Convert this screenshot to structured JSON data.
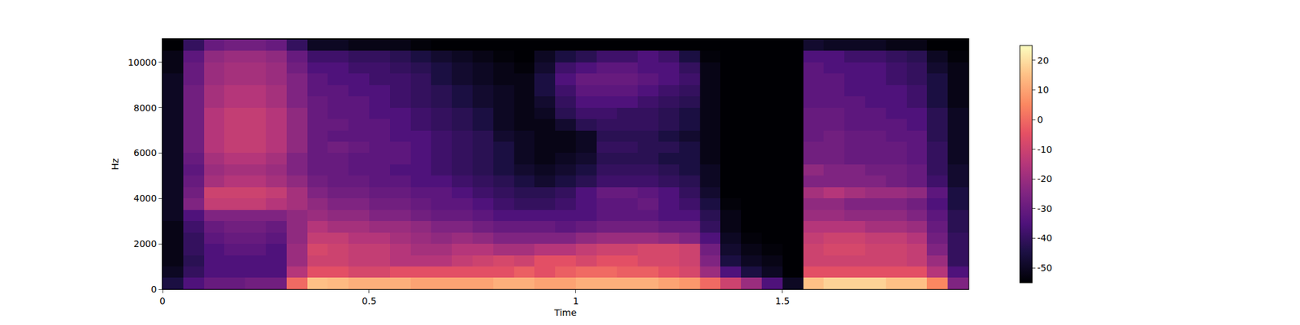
{
  "chart_data": {
    "type": "heatmap",
    "x_label": "Time",
    "y_label": "Hz",
    "color": "magma",
    "x": [
      0.025,
      0.075,
      0.125,
      0.175,
      0.225,
      0.275,
      0.325,
      0.375,
      0.425,
      0.475,
      0.525,
      0.575,
      0.625,
      0.675,
      0.725,
      0.775,
      0.825,
      0.875,
      0.925,
      0.975,
      1.025,
      1.075,
      1.125,
      1.175,
      1.225,
      1.275,
      1.325,
      1.375,
      1.425,
      1.475,
      1.525,
      1.575,
      1.625,
      1.675,
      1.725,
      1.775,
      1.825,
      1.875,
      1.925
    ],
    "y": [
      250,
      750,
      1250,
      1750,
      2250,
      2750,
      3250,
      3750,
      4250,
      4750,
      5250,
      5750,
      6250,
      6750,
      7250,
      7750,
      8250,
      8750,
      9250,
      9750,
      10250,
      10750
    ],
    "xlim": [
      0,
      1.95
    ],
    "ylim": [
      0,
      11025
    ],
    "xticks": [
      0,
      0.5,
      1,
      1.5
    ],
    "yticks": [
      0,
      2000,
      4000,
      6000,
      8000,
      10000
    ],
    "colorbar_range": [
      -55,
      25
    ],
    "colorbar_ticks": [
      -50,
      -40,
      -30,
      -20,
      -10,
      0,
      10,
      20
    ],
    "cells": [
      [
        -45,
        -35,
        -30,
        -30,
        -28,
        -28,
        0,
        15,
        14,
        12,
        12,
        12,
        10,
        10,
        10,
        10,
        12,
        12,
        10,
        10,
        12,
        12,
        12,
        12,
        10,
        8,
        0,
        -10,
        -20,
        -35,
        -50,
        15,
        18,
        18,
        18,
        15,
        15,
        5,
        -25
      ],
      [
        -50,
        -40,
        -35,
        -35,
        -35,
        -35,
        -15,
        -5,
        -5,
        -8,
        -8,
        -5,
        -5,
        -5,
        -5,
        -5,
        -5,
        -2,
        -5,
        -2,
        0,
        0,
        -2,
        -2,
        -5,
        -8,
        -20,
        -35,
        -45,
        -50,
        -55,
        -5,
        -5,
        -5,
        -5,
        -5,
        -5,
        -15,
        -35
      ],
      [
        -52,
        -42,
        -35,
        -35,
        -35,
        -35,
        -20,
        -10,
        -10,
        -12,
        -12,
        -15,
        -15,
        -15,
        -12,
        -10,
        -8,
        -10,
        -5,
        -5,
        -8,
        -5,
        -5,
        -8,
        -8,
        -10,
        -25,
        -45,
        -50,
        -52,
        -55,
        -10,
        -10,
        -10,
        -10,
        -10,
        -12,
        -20,
        -40
      ],
      [
        -52,
        -40,
        -35,
        -32,
        -32,
        -35,
        -20,
        -8,
        -10,
        -12,
        -12,
        -15,
        -18,
        -18,
        -15,
        -15,
        -18,
        -18,
        -15,
        -15,
        -12,
        -10,
        -10,
        -8,
        -8,
        -10,
        -28,
        -48,
        -52,
        -54,
        -55,
        -10,
        -8,
        -8,
        -10,
        -10,
        -12,
        -25,
        -40
      ],
      [
        -52,
        -40,
        -32,
        -30,
        -30,
        -32,
        -22,
        -12,
        -12,
        -15,
        -15,
        -18,
        -20,
        -22,
        -20,
        -22,
        -25,
        -25,
        -25,
        -25,
        -22,
        -20,
        -20,
        -20,
        -22,
        -25,
        -35,
        -50,
        -54,
        -55,
        -55,
        -12,
        -10,
        -10,
        -12,
        -12,
        -15,
        -28,
        -40
      ],
      [
        -52,
        -38,
        -30,
        -28,
        -28,
        -30,
        -22,
        -15,
        -18,
        -18,
        -20,
        -20,
        -22,
        -25,
        -25,
        -28,
        -30,
        -30,
        -30,
        -32,
        -30,
        -28,
        -28,
        -28,
        -30,
        -30,
        -40,
        -52,
        -55,
        -55,
        -55,
        -15,
        -15,
        -15,
        -18,
        -18,
        -20,
        -30,
        -42
      ],
      [
        -50,
        -35,
        -25,
        -25,
        -25,
        -25,
        -22,
        -20,
        -22,
        -22,
        -25,
        -25,
        -28,
        -30,
        -30,
        -32,
        -35,
        -35,
        -35,
        -35,
        -35,
        -32,
        -32,
        -32,
        -35,
        -35,
        -42,
        -52,
        -55,
        -55,
        -55,
        -20,
        -20,
        -22,
        -22,
        -22,
        -25,
        -32,
        -42
      ],
      [
        -50,
        -25,
        -12,
        -12,
        -12,
        -15,
        -18,
        -22,
        -25,
        -25,
        -28,
        -28,
        -30,
        -32,
        -32,
        -35,
        -38,
        -40,
        -40,
        -38,
        -35,
        -32,
        -32,
        -30,
        -35,
        -38,
        -45,
        -54,
        -55,
        -55,
        -55,
        -22,
        -22,
        -25,
        -25,
        -25,
        -28,
        -35,
        -45
      ],
      [
        -50,
        -28,
        -10,
        -10,
        -10,
        -12,
        -18,
        -25,
        -28,
        -28,
        -30,
        -30,
        -32,
        -32,
        -35,
        -38,
        -40,
        -42,
        -42,
        -40,
        -35,
        -30,
        -30,
        -32,
        -35,
        -40,
        -48,
        -55,
        -55,
        -55,
        -55,
        -18,
        -15,
        -18,
        -20,
        -20,
        -22,
        -32,
        -45
      ],
      [
        -50,
        -30,
        -18,
        -15,
        -15,
        -18,
        -22,
        -28,
        -30,
        -30,
        -32,
        -32,
        -35,
        -35,
        -38,
        -40,
        -42,
        -45,
        -48,
        -45,
        -42,
        -38,
        -38,
        -38,
        -40,
        -42,
        -50,
        -55,
        -55,
        -55,
        -55,
        -25,
        -25,
        -25,
        -25,
        -28,
        -30,
        -38,
        -48
      ],
      [
        -50,
        -32,
        -20,
        -18,
        -18,
        -20,
        -25,
        -30,
        -30,
        -32,
        -32,
        -35,
        -35,
        -38,
        -40,
        -42,
        -45,
        -48,
        -50,
        -48,
        -45,
        -40,
        -40,
        -40,
        -42,
        -45,
        -50,
        -55,
        -55,
        -55,
        -55,
        -22,
        -25,
        -25,
        -28,
        -28,
        -30,
        -40,
        -48
      ],
      [
        -50,
        -30,
        -18,
        -15,
        -15,
        -18,
        -25,
        -30,
        -30,
        -32,
        -32,
        -32,
        -35,
        -38,
        -40,
        -42,
        -45,
        -50,
        -52,
        -50,
        -48,
        -42,
        -42,
        -42,
        -45,
        -45,
        -52,
        -55,
        -55,
        -55,
        -55,
        -28,
        -28,
        -30,
        -30,
        -30,
        -32,
        -40,
        -50
      ],
      [
        -50,
        -28,
        -15,
        -12,
        -12,
        -15,
        -22,
        -30,
        -28,
        -30,
        -32,
        -32,
        -35,
        -38,
        -40,
        -42,
        -45,
        -50,
        -52,
        -52,
        -50,
        -40,
        -40,
        -42,
        -42,
        -45,
        -52,
        -55,
        -55,
        -55,
        -55,
        -28,
        -28,
        -30,
        -30,
        -30,
        -32,
        -40,
        -50
      ],
      [
        -50,
        -28,
        -15,
        -12,
        -12,
        -15,
        -22,
        -30,
        -32,
        -32,
        -32,
        -35,
        -35,
        -38,
        -40,
        -42,
        -48,
        -50,
        -52,
        -52,
        -50,
        -42,
        -42,
        -42,
        -45,
        -48,
        -52,
        -55,
        -55,
        -55,
        -55,
        -30,
        -28,
        -30,
        -30,
        -32,
        -32,
        -42,
        -50
      ],
      [
        -50,
        -28,
        -15,
        -12,
        -12,
        -15,
        -22,
        -30,
        -30,
        -32,
        -32,
        -35,
        -38,
        -40,
        -42,
        -45,
        -50,
        -52,
        -52,
        -48,
        -42,
        -40,
        -40,
        -40,
        -42,
        -45,
        -52,
        -55,
        -55,
        -55,
        -55,
        -30,
        -30,
        -32,
        -32,
        -32,
        -35,
        -42,
        -50
      ],
      [
        -50,
        -28,
        -15,
        -12,
        -12,
        -15,
        -22,
        -30,
        -32,
        -32,
        -35,
        -35,
        -38,
        -40,
        -42,
        -45,
        -50,
        -52,
        -50,
        -42,
        -38,
        -38,
        -40,
        -40,
        -42,
        -45,
        -52,
        -55,
        -55,
        -55,
        -55,
        -30,
        -30,
        -32,
        -32,
        -35,
        -35,
        -42,
        -50
      ],
      [
        -50,
        -28,
        -18,
        -15,
        -15,
        -18,
        -25,
        -30,
        -32,
        -32,
        -35,
        -38,
        -40,
        -42,
        -45,
        -48,
        -50,
        -52,
        -48,
        -40,
        -35,
        -35,
        -35,
        -38,
        -40,
        -42,
        -52,
        -55,
        -55,
        -55,
        -55,
        -32,
        -32,
        -32,
        -35,
        -35,
        -38,
        -45,
        -52
      ],
      [
        -50,
        -28,
        -18,
        -15,
        -15,
        -18,
        -25,
        -32,
        -32,
        -35,
        -35,
        -38,
        -40,
        -42,
        -45,
        -48,
        -50,
        -52,
        -45,
        -38,
        -32,
        -32,
        -32,
        -35,
        -38,
        -40,
        -52,
        -55,
        -55,
        -55,
        -55,
        -32,
        -32,
        -35,
        -35,
        -35,
        -38,
        -45,
        -52
      ],
      [
        -50,
        -30,
        -20,
        -18,
        -18,
        -20,
        -25,
        -32,
        -35,
        -35,
        -38,
        -38,
        -40,
        -45,
        -48,
        -50,
        -52,
        -52,
        -45,
        -35,
        -30,
        -30,
        -30,
        -32,
        -35,
        -38,
        -52,
        -55,
        -55,
        -55,
        -55,
        -32,
        -32,
        -35,
        -35,
        -38,
        -40,
        -45,
        -52
      ],
      [
        -52,
        -30,
        -20,
        -18,
        -18,
        -20,
        -28,
        -35,
        -35,
        -38,
        -38,
        -40,
        -42,
        -45,
        -48,
        -50,
        -52,
        -54,
        -48,
        -38,
        -35,
        -32,
        -32,
        -35,
        -35,
        -40,
        -52,
        -55,
        -55,
        -55,
        -55,
        -32,
        -35,
        -35,
        -35,
        -38,
        -40,
        -48,
        -52
      ],
      [
        -52,
        -32,
        -22,
        -20,
        -20,
        -22,
        -30,
        -38,
        -38,
        -40,
        -40,
        -42,
        -45,
        -48,
        -50,
        -52,
        -54,
        -55,
        -50,
        -45,
        -42,
        -38,
        -38,
        -35,
        -38,
        -45,
        -54,
        -55,
        -55,
        -55,
        -55,
        -35,
        -35,
        -38,
        -38,
        -40,
        -42,
        -50,
        -54
      ],
      [
        -55,
        -40,
        -30,
        -28,
        -28,
        -30,
        -40,
        -50,
        -50,
        -52,
        -52,
        -52,
        -54,
        -55,
        -55,
        -55,
        -55,
        -55,
        -55,
        -55,
        -55,
        -55,
        -55,
        -55,
        -55,
        -55,
        -55,
        -55,
        -55,
        -55,
        -55,
        -48,
        -50,
        -50,
        -50,
        -52,
        -52,
        -55,
        -55
      ]
    ]
  }
}
